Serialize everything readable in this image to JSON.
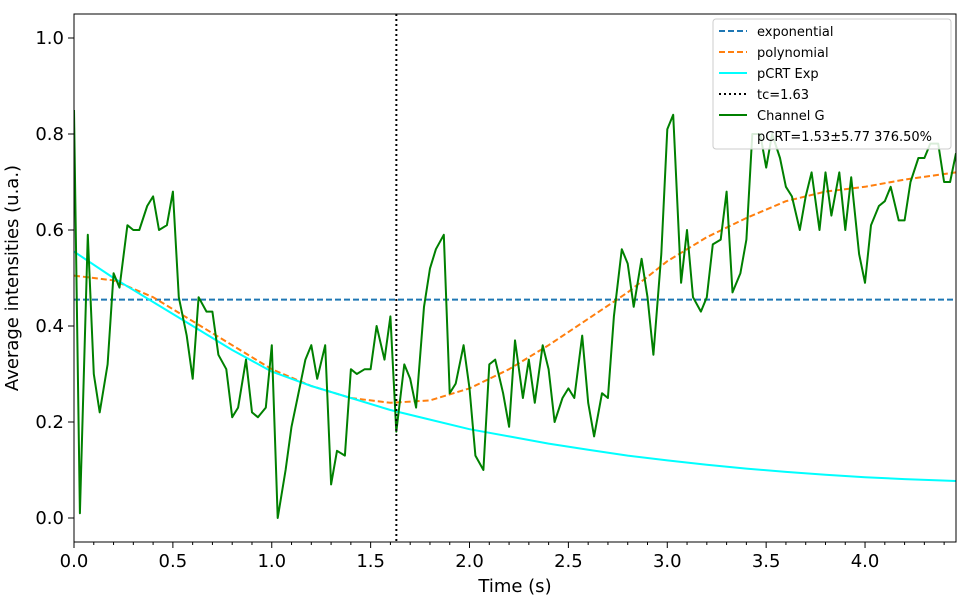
{
  "chart_data": {
    "type": "line",
    "title": "",
    "xlabel": "Time (s)",
    "ylabel": "Average intensities (u.a.)",
    "xlim": [
      0.0,
      4.46
    ],
    "ylim": [
      -0.05,
      1.05
    ],
    "xticks": [
      "0.0",
      "0.5",
      "1.0",
      "1.5",
      "2.0",
      "2.5",
      "3.0",
      "3.5",
      "4.0"
    ],
    "yticks": [
      "0.0",
      "0.2",
      "0.4",
      "0.6",
      "0.8",
      "1.0"
    ],
    "grid": false,
    "legend_position": "top-right",
    "legend": [
      {
        "label": "exponential",
        "style": "dashed",
        "color": "#1f77b4"
      },
      {
        "label": "polynomial",
        "style": "dashed",
        "color": "#ff7f0e"
      },
      {
        "label": "pCRT Exp",
        "style": "solid",
        "color": "#00ffff"
      },
      {
        "label": "tc=1.63",
        "style": "dotted",
        "color": "#000000"
      },
      {
        "label": "Channel G",
        "style": "solid",
        "color": "#008000"
      },
      {
        "label": "pCRT=1.53±5.77 376.50%",
        "style": "none",
        "color": "none"
      }
    ],
    "vline": {
      "name": "tc=1.63",
      "x": 1.63,
      "color": "#000000"
    },
    "series": [
      {
        "name": "exponential",
        "color": "#1f77b4",
        "style": "dashed",
        "x": [
          0.0,
          4.46
        ],
        "y": [
          0.455,
          0.455
        ]
      },
      {
        "name": "polynomial",
        "color": "#ff7f0e",
        "style": "dashed",
        "x": [
          0.0,
          0.2,
          0.4,
          0.6,
          0.8,
          1.0,
          1.2,
          1.4,
          1.6,
          1.8,
          2.0,
          2.2,
          2.4,
          2.6,
          2.8,
          3.0,
          3.2,
          3.4,
          3.6,
          3.8,
          4.0,
          4.2,
          4.46
        ],
        "y": [
          0.505,
          0.495,
          0.46,
          0.41,
          0.36,
          0.31,
          0.275,
          0.25,
          0.24,
          0.245,
          0.27,
          0.31,
          0.36,
          0.415,
          0.47,
          0.535,
          0.585,
          0.625,
          0.66,
          0.68,
          0.69,
          0.705,
          0.72
        ]
      },
      {
        "name": "pCRT Exp",
        "color": "#00ffff",
        "style": "solid",
        "x": [
          0.0,
          0.2,
          0.4,
          0.6,
          0.8,
          1.0,
          1.2,
          1.4,
          1.6,
          1.8,
          2.0,
          2.2,
          2.4,
          2.6,
          2.8,
          3.0,
          3.2,
          3.4,
          3.6,
          3.8,
          4.0,
          4.2,
          4.46
        ],
        "y": [
          0.555,
          0.5,
          0.45,
          0.4,
          0.35,
          0.305,
          0.275,
          0.25,
          0.225,
          0.205,
          0.185,
          0.17,
          0.155,
          0.142,
          0.13,
          0.12,
          0.111,
          0.103,
          0.096,
          0.09,
          0.085,
          0.081,
          0.077
        ]
      },
      {
        "name": "Channel G",
        "color": "#008000",
        "style": "solid",
        "x": [
          0.0,
          0.03,
          0.07,
          0.1,
          0.13,
          0.17,
          0.2,
          0.23,
          0.27,
          0.3,
          0.33,
          0.37,
          0.4,
          0.43,
          0.47,
          0.5,
          0.53,
          0.57,
          0.6,
          0.63,
          0.67,
          0.7,
          0.73,
          0.77,
          0.8,
          0.83,
          0.87,
          0.9,
          0.93,
          0.97,
          1.0,
          1.03,
          1.07,
          1.1,
          1.13,
          1.17,
          1.2,
          1.23,
          1.27,
          1.3,
          1.33,
          1.37,
          1.4,
          1.43,
          1.47,
          1.5,
          1.53,
          1.57,
          1.6,
          1.63,
          1.67,
          1.7,
          1.73,
          1.77,
          1.8,
          1.83,
          1.87,
          1.9,
          1.93,
          1.97,
          2.0,
          2.03,
          2.07,
          2.1,
          2.13,
          2.17,
          2.2,
          2.23,
          2.27,
          2.3,
          2.33,
          2.37,
          2.4,
          2.43,
          2.47,
          2.5,
          2.53,
          2.57,
          2.6,
          2.63,
          2.67,
          2.7,
          2.73,
          2.77,
          2.8,
          2.83,
          2.87,
          2.9,
          2.93,
          2.97,
          3.0,
          3.03,
          3.07,
          3.1,
          3.13,
          3.17,
          3.2,
          3.23,
          3.27,
          3.3,
          3.33,
          3.37,
          3.4,
          3.43,
          3.47,
          3.5,
          3.53,
          3.57,
          3.6,
          3.63,
          3.67,
          3.7,
          3.73,
          3.77,
          3.8,
          3.83,
          3.87,
          3.9,
          3.93,
          3.97,
          4.0,
          4.03,
          4.07,
          4.1,
          4.13,
          4.17,
          4.2,
          4.23,
          4.27,
          4.3,
          4.33,
          4.37,
          4.4,
          4.43,
          4.46
        ],
        "y": [
          0.85,
          0.01,
          0.59,
          0.3,
          0.22,
          0.32,
          0.51,
          0.48,
          0.61,
          0.6,
          0.6,
          0.65,
          0.67,
          0.6,
          0.61,
          0.68,
          0.46,
          0.38,
          0.29,
          0.46,
          0.43,
          0.43,
          0.34,
          0.31,
          0.21,
          0.23,
          0.33,
          0.22,
          0.21,
          0.23,
          0.36,
          0.0,
          0.1,
          0.19,
          0.25,
          0.33,
          0.36,
          0.29,
          0.36,
          0.07,
          0.14,
          0.13,
          0.31,
          0.3,
          0.31,
          0.31,
          0.4,
          0.33,
          0.42,
          0.18,
          0.32,
          0.29,
          0.23,
          0.44,
          0.52,
          0.56,
          0.59,
          0.26,
          0.28,
          0.36,
          0.27,
          0.13,
          0.1,
          0.32,
          0.33,
          0.26,
          0.19,
          0.37,
          0.25,
          0.33,
          0.24,
          0.36,
          0.31,
          0.2,
          0.25,
          0.27,
          0.25,
          0.38,
          0.24,
          0.17,
          0.26,
          0.25,
          0.42,
          0.56,
          0.53,
          0.44,
          0.54,
          0.46,
          0.34,
          0.55,
          0.81,
          0.84,
          0.49,
          0.6,
          0.46,
          0.43,
          0.46,
          0.57,
          0.58,
          0.68,
          0.47,
          0.51,
          0.58,
          0.8,
          0.8,
          0.73,
          0.8,
          0.75,
          0.69,
          0.67,
          0.6,
          0.67,
          0.72,
          0.6,
          0.72,
          0.63,
          0.72,
          0.6,
          0.71,
          0.55,
          0.49,
          0.61,
          0.65,
          0.66,
          0.69,
          0.62,
          0.62,
          0.7,
          0.75,
          0.75,
          0.78,
          0.78,
          0.7,
          0.7,
          0.76
        ]
      }
    ]
  }
}
